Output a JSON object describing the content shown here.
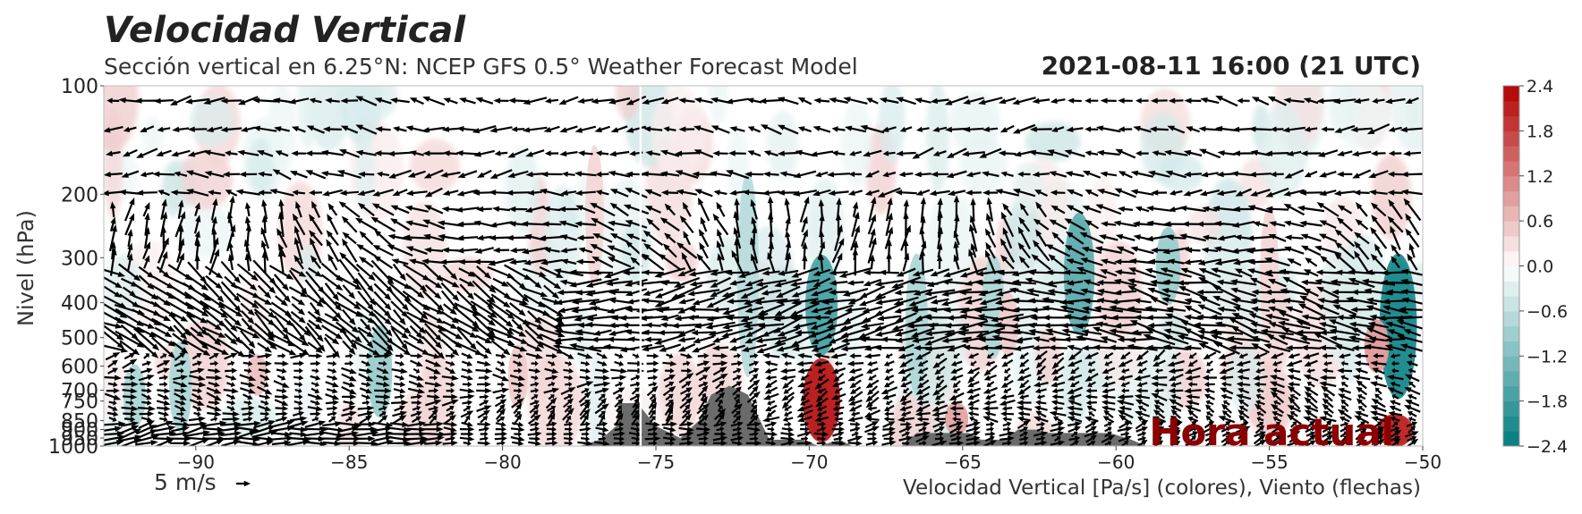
{
  "chart_data": {
    "type": "heatmap",
    "title": "Velocidad Vertical",
    "subtitle": "Sección vertical en 6.25°N: NCEP GFS 0.5° Weather Forecast Model",
    "valid_time": "2021-08-11 16:00 (21 UTC)",
    "xlabel": "Velocidad Vertical [Pa/s] (colores), Viento (flechas)",
    "ylabel": "Nivel (hPa)",
    "annotation": "Hora actual",
    "wind_key_label": "5 m/s",
    "xlim": [
      -93,
      -50
    ],
    "ylim": [
      1000,
      100
    ],
    "x_ticks": [
      -90,
      -85,
      -80,
      -75,
      -70,
      -65,
      -60,
      -55,
      -50
    ],
    "x_tick_labels": [
      "−90",
      "−85",
      "−80",
      "−75",
      "−70",
      "−65",
      "−60",
      "−55",
      "−50"
    ],
    "y_ticks": [
      100,
      200,
      300,
      400,
      500,
      600,
      700,
      750,
      850,
      900,
      950,
      1000
    ],
    "y_tick_labels": [
      "100",
      "200",
      "300",
      "400",
      "500",
      "600",
      "700",
      "750",
      "850",
      "900",
      "950",
      "1000"
    ],
    "colorbar": {
      "min": -2.4,
      "max": 2.4,
      "step": 0.2,
      "ticks": [
        2.4,
        1.8,
        1.2,
        0.6,
        0.0,
        -0.6,
        -1.2,
        -1.8,
        -2.4
      ],
      "tick_labels": [
        "2.4",
        "1.8",
        "1.2",
        "0.6",
        "0.0",
        "−0.6",
        "−1.2",
        "−1.8",
        "−2.4"
      ]
    },
    "current_time_line_x": -75.5,
    "features": [
      {
        "x": -69.6,
        "p_top": 300,
        "p_bottom": 550,
        "value": -1.8
      },
      {
        "x": -69.6,
        "p_top": 580,
        "p_bottom": 960,
        "value": 2.3
      },
      {
        "x": -50.8,
        "p_top": 300,
        "p_bottom": 720,
        "value": -2.3
      },
      {
        "x": -50.9,
        "p_top": 820,
        "p_bottom": 1000,
        "value": 2.2
      },
      {
        "x": -51.5,
        "p_top": 450,
        "p_bottom": 620,
        "value": 1.0
      },
      {
        "x": -61.2,
        "p_top": 230,
        "p_bottom": 480,
        "value": -1.6
      },
      {
        "x": -72.0,
        "p_top": 180,
        "p_bottom": 620,
        "value": -0.7
      },
      {
        "x": -66.5,
        "p_top": 300,
        "p_bottom": 700,
        "value": -0.8
      },
      {
        "x": -64.0,
        "p_top": 300,
        "p_bottom": 560,
        "value": -0.8
      },
      {
        "x": -58.3,
        "p_top": 250,
        "p_bottom": 400,
        "value": -1.0
      },
      {
        "x": -84.0,
        "p_top": 470,
        "p_bottom": 820,
        "value": -1.0
      },
      {
        "x": -90.5,
        "p_top": 520,
        "p_bottom": 900,
        "value": -0.8
      },
      {
        "x": -92.0,
        "p_top": 600,
        "p_bottom": 880,
        "value": -0.8
      },
      {
        "x": -79.5,
        "p_top": 530,
        "p_bottom": 780,
        "value": 0.5
      },
      {
        "x": -88.0,
        "p_top": 560,
        "p_bottom": 720,
        "value": 0.6
      },
      {
        "x": -65.2,
        "p_top": 760,
        "p_bottom": 930,
        "value": 0.9
      },
      {
        "x": -63.5,
        "p_top": 380,
        "p_bottom": 560,
        "value": 0.5
      },
      {
        "x": -77.0,
        "p_top": 150,
        "p_bottom": 350,
        "value": 0.4
      },
      {
        "x": -55.0,
        "p_top": 220,
        "p_bottom": 500,
        "value": 0.4
      }
    ],
    "terrain": [
      [
        -77.5,
        1000
      ],
      [
        -76.8,
        960
      ],
      [
        -76.3,
        880
      ],
      [
        -76.2,
        760
      ],
      [
        -75.6,
        760
      ],
      [
        -75.0,
        880
      ],
      [
        -74.2,
        950
      ],
      [
        -73.6,
        850
      ],
      [
        -73.2,
        720
      ],
      [
        -72.6,
        680
      ],
      [
        -72.0,
        720
      ],
      [
        -71.6,
        850
      ],
      [
        -71.3,
        960
      ],
      [
        -70.2,
        960
      ],
      [
        -69.7,
        1000
      ],
      [
        -69.0,
        960
      ],
      [
        -68.6,
        1000
      ],
      [
        -67.0,
        1000
      ],
      [
        -66.5,
        920
      ],
      [
        -64.8,
        920
      ],
      [
        -64.4,
        960
      ],
      [
        -63.6,
        960
      ],
      [
        -63.2,
        900
      ],
      [
        -62.6,
        900
      ],
      [
        -62.3,
        920
      ],
      [
        -60.2,
        920
      ],
      [
        -59.5,
        960
      ],
      [
        -59.0,
        1000
      ]
    ]
  },
  "colors": {
    "negative_max": "#007c80",
    "neutral": "#ffffff",
    "positive_max": "#b20000",
    "terrain": "#6b6b6b",
    "arrows": "#000000",
    "annotation": "#8b0000",
    "time_line": "#ffffff"
  }
}
